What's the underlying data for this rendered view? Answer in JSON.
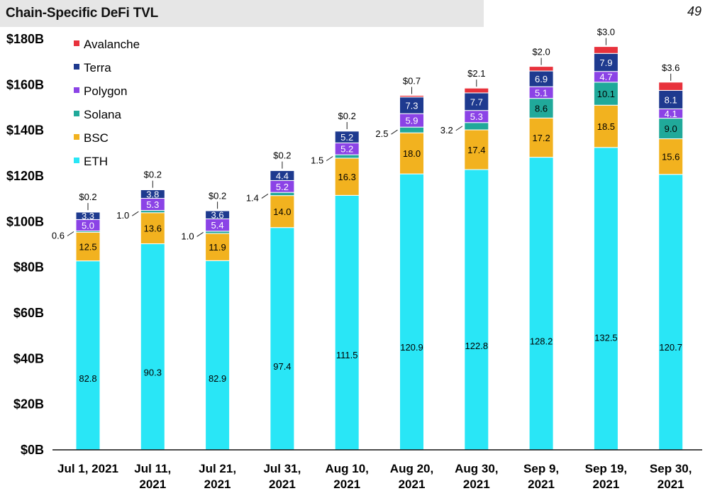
{
  "header": {
    "title": "Chain-Specific DeFi TVL",
    "page_number": "49"
  },
  "chart_data": {
    "type": "bar",
    "stacked": true,
    "title": "Chain-Specific DeFi TVL",
    "xlabel": "",
    "ylabel": "",
    "ylim": [
      0,
      180
    ],
    "y_ticks": [
      "$0B",
      "$20B",
      "$40B",
      "$60B",
      "$80B",
      "$100B",
      "$120B",
      "$140B",
      "$160B",
      "$180B"
    ],
    "grid": false,
    "legend_position": "top-left",
    "categories": [
      [
        "Jul 1, 2021"
      ],
      [
        "Jul 11,",
        "2021"
      ],
      [
        "Jul 21,",
        "2021"
      ],
      [
        "Jul 31,",
        "2021"
      ],
      [
        "Aug 10,",
        "2021"
      ],
      [
        "Aug 20,",
        "2021"
      ],
      [
        "Aug 30,",
        "2021"
      ],
      [
        "Sep 9,",
        "2021"
      ],
      [
        "Sep 19,",
        "2021"
      ],
      [
        "Sep 30,",
        "2021"
      ]
    ],
    "series": [
      {
        "name": "ETH",
        "color": "#29e6f6",
        "values": [
          82.8,
          90.3,
          82.9,
          97.4,
          111.5,
          120.9,
          122.8,
          128.2,
          132.5,
          120.7
        ],
        "labels": [
          "82.8",
          "90.3",
          "82.9",
          "97.4",
          "111.5",
          "120.9",
          "122.8",
          "128.2",
          "132.5",
          "120.7"
        ]
      },
      {
        "name": "BSC",
        "color": "#f2b21f",
        "values": [
          12.5,
          13.6,
          11.9,
          14.0,
          16.3,
          18.0,
          17.4,
          17.2,
          18.5,
          15.6
        ],
        "labels": [
          "12.5",
          "13.6",
          "11.9",
          "14.0",
          "16.3",
          "18.0",
          "17.4",
          "17.2",
          "18.5",
          "15.6"
        ]
      },
      {
        "name": "Solana",
        "color": "#20a99a",
        "values": [
          0.6,
          1.0,
          1.0,
          1.4,
          1.5,
          2.5,
          3.2,
          8.6,
          10.1,
          9.0
        ],
        "labels": [
          "0.6",
          "1.0",
          "1.0",
          "1.4",
          "1.5",
          "2.5",
          "3.2",
          "8.6",
          "10.1",
          "9.0"
        ]
      },
      {
        "name": "Polygon",
        "color": "#8b43e6",
        "values": [
          5.0,
          5.3,
          5.4,
          5.2,
          5.2,
          5.9,
          5.3,
          5.1,
          4.7,
          4.1
        ],
        "labels": [
          "5.0",
          "5.3",
          "5.4",
          "5.2",
          "5.2",
          "5.9",
          "5.3",
          "5.1",
          "4.7",
          "4.1"
        ]
      },
      {
        "name": "Terra",
        "color": "#1e3a8f",
        "values": [
          3.3,
          3.8,
          3.6,
          4.4,
          5.2,
          7.3,
          7.7,
          6.9,
          7.9,
          8.1
        ],
        "labels": [
          "3.3",
          "3.8",
          "3.6",
          "4.4",
          "5.2",
          "7.3",
          "7.7",
          "6.9",
          "7.9",
          "8.1"
        ]
      },
      {
        "name": "Avalanche",
        "color": "#e8323c",
        "values": [
          0.2,
          0.2,
          0.2,
          0.2,
          0.2,
          0.7,
          2.1,
          2.0,
          3.0,
          3.6
        ],
        "labels": [
          "$0.2",
          "$0.2",
          "$0.2",
          "$0.2",
          "$0.2",
          "$0.7",
          "$2.1",
          "$2.0",
          "$3.0",
          "$3.6"
        ]
      }
    ],
    "legend_order": [
      "Avalanche",
      "Terra",
      "Polygon",
      "Solana",
      "BSC",
      "ETH"
    ]
  }
}
